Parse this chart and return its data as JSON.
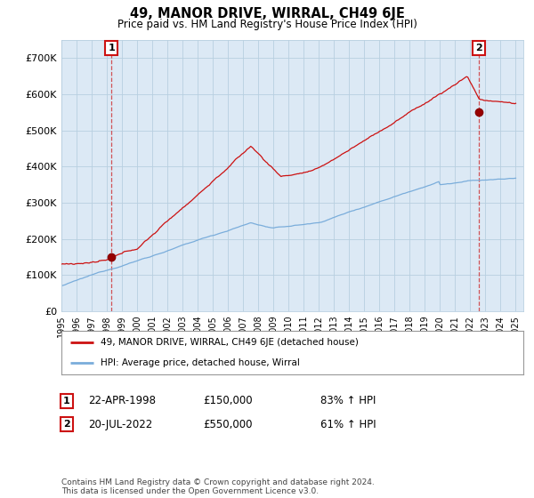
{
  "title": "49, MANOR DRIVE, WIRRAL, CH49 6JE",
  "subtitle": "Price paid vs. HM Land Registry's House Price Index (HPI)",
  "ylim": [
    0,
    750000
  ],
  "yticks": [
    0,
    100000,
    200000,
    300000,
    400000,
    500000,
    600000,
    700000
  ],
  "ytick_labels": [
    "£0",
    "£100K",
    "£200K",
    "£300K",
    "£400K",
    "£500K",
    "£600K",
    "£700K"
  ],
  "hpi_color": "#7aaddb",
  "price_color": "#cc1111",
  "plot_bg_color": "#dce9f5",
  "background_color": "#ffffff",
  "grid_color": "#b8cfe0",
  "sale1_year": 1998.3,
  "sale1_price": 150000,
  "sale2_year": 2022.55,
  "sale2_price": 550000,
  "legend_price_label": "49, MANOR DRIVE, WIRRAL, CH49 6JE (detached house)",
  "legend_hpi_label": "HPI: Average price, detached house, Wirral",
  "table_row1": [
    "1",
    "22-APR-1998",
    "£150,000",
    "83% ↑ HPI"
  ],
  "table_row2": [
    "2",
    "20-JUL-2022",
    "£550,000",
    "61% ↑ HPI"
  ],
  "footer": "Contains HM Land Registry data © Crown copyright and database right 2024.\nThis data is licensed under the Open Government Licence v3.0."
}
